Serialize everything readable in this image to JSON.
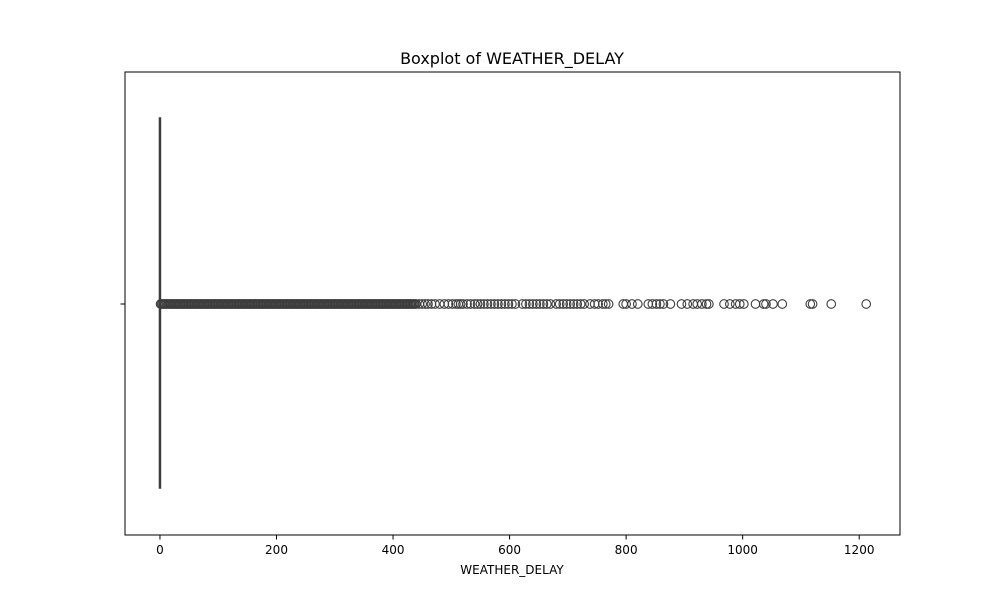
{
  "chart_data": {
    "type": "boxplot",
    "orientation": "horizontal",
    "title": "Boxplot of WEATHER_DELAY",
    "xlabel": "WEATHER_DELAY",
    "ylabel": "",
    "xlim": [
      -60,
      1270
    ],
    "xticks": [
      0,
      200,
      400,
      600,
      800,
      1000,
      1200
    ],
    "xtick_labels": [
      "0",
      "200",
      "400",
      "600",
      "800",
      "1000",
      "1200"
    ],
    "yticks": [
      ""
    ],
    "grid": false,
    "box": {
      "min": 0,
      "q1": 0,
      "median": 0,
      "q3": 0,
      "max": 0
    },
    "outliers_dense_range": [
      1,
      440
    ],
    "outliers": [
      445,
      450,
      455,
      460,
      466,
      472,
      480,
      488,
      495,
      502,
      508,
      512,
      516,
      520,
      527,
      533,
      540,
      545,
      550,
      556,
      562,
      568,
      574,
      580,
      586,
      592,
      598,
      604,
      610,
      622,
      628,
      634,
      640,
      646,
      652,
      658,
      664,
      670,
      680,
      686,
      692,
      698,
      704,
      710,
      716,
      722,
      728,
      738,
      746,
      752,
      760,
      765,
      770,
      795,
      800,
      810,
      820,
      838,
      845,
      852,
      858,
      864,
      876,
      895,
      905,
      915,
      922,
      930,
      938,
      942,
      968,
      978,
      988,
      995,
      1002,
      1022,
      1036,
      1040,
      1052,
      1068,
      1116,
      1120,
      1152,
      1212
    ],
    "colors": {
      "box": "#3274a1",
      "outlier_edge": "#3d3d3d",
      "whisker": "#3d3d3d"
    }
  }
}
